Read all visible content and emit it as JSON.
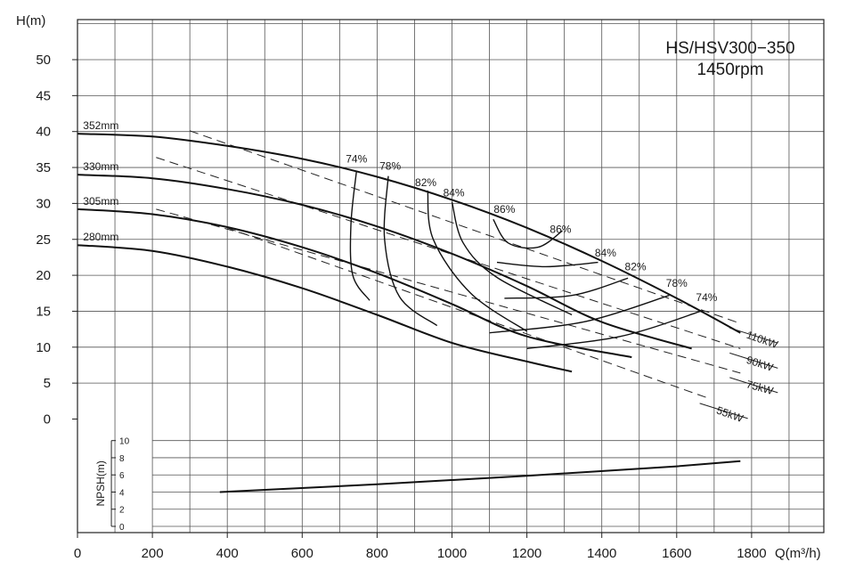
{
  "chart_data": {
    "type": "line",
    "title": [
      "HS/HSV300−350",
      "1450rpm"
    ],
    "xlabel": "Q(m³/h)",
    "ylabel": "H(m)",
    "xlim": [
      0,
      1900
    ],
    "ylim": [
      0,
      55
    ],
    "x_ticks": [
      "0",
      "200",
      "400",
      "600",
      "800",
      "1000",
      "1200",
      "1400",
      "1600",
      "1800"
    ],
    "y_ticks": [
      "0",
      "5",
      "10",
      "15",
      "20",
      "25",
      "30",
      "35",
      "40",
      "45",
      "50"
    ],
    "grid": true,
    "series": [
      {
        "name": "352mm",
        "x": [
          0,
          200,
          400,
          600,
          800,
          1000,
          1200,
          1400,
          1600,
          1770
        ],
        "y": [
          39.7,
          39.3,
          38.0,
          36.2,
          33.7,
          30.5,
          26.6,
          22.0,
          16.8,
          12.0
        ]
      },
      {
        "name": "330mm",
        "x": [
          0,
          200,
          400,
          600,
          800,
          1000,
          1200,
          1400,
          1640
        ],
        "y": [
          34.0,
          33.5,
          32.0,
          29.8,
          26.8,
          23.0,
          18.5,
          13.5,
          9.8
        ]
      },
      {
        "name": "305mm",
        "x": [
          0,
          200,
          400,
          600,
          800,
          1000,
          1200,
          1480
        ],
        "y": [
          29.2,
          28.5,
          26.7,
          23.9,
          20.3,
          16.0,
          11.5,
          8.6
        ]
      },
      {
        "name": "280mm",
        "x": [
          0,
          200,
          400,
          600,
          800,
          1000,
          1200,
          1320
        ],
        "y": [
          24.2,
          23.4,
          21.2,
          18.2,
          14.5,
          10.6,
          8.0,
          6.6
        ]
      }
    ],
    "efficiency_labels": {
      "upper": [
        "74%",
        "78%",
        "82%",
        "84%",
        "86%",
        "86%",
        "84%",
        "82%",
        "78%",
        "74%"
      ]
    },
    "power_lines": [
      {
        "label": "110kW",
        "from": [
          300,
          40.1
        ],
        "to": [
          1770,
          13.3
        ]
      },
      {
        "label": "90kW",
        "from": [
          210,
          36.4
        ],
        "to": [
          1770,
          9.8
        ]
      },
      {
        "label": "75kW",
        "from": [
          210,
          29.2
        ],
        "to": [
          1770,
          6.4
        ]
      },
      {
        "label": "55kW",
        "from": [
          400,
          26.6
        ],
        "to": [
          1690,
          2.8
        ]
      }
    ],
    "npsh": {
      "label": "NPSH(m)",
      "ticks": [
        "10",
        "8",
        "6",
        "4",
        "2",
        "0"
      ],
      "ylim": [
        0,
        10
      ],
      "x": [
        380,
        800,
        1200,
        1600,
        1770
      ],
      "y": [
        4.0,
        4.9,
        5.9,
        7.0,
        7.6
      ]
    }
  }
}
